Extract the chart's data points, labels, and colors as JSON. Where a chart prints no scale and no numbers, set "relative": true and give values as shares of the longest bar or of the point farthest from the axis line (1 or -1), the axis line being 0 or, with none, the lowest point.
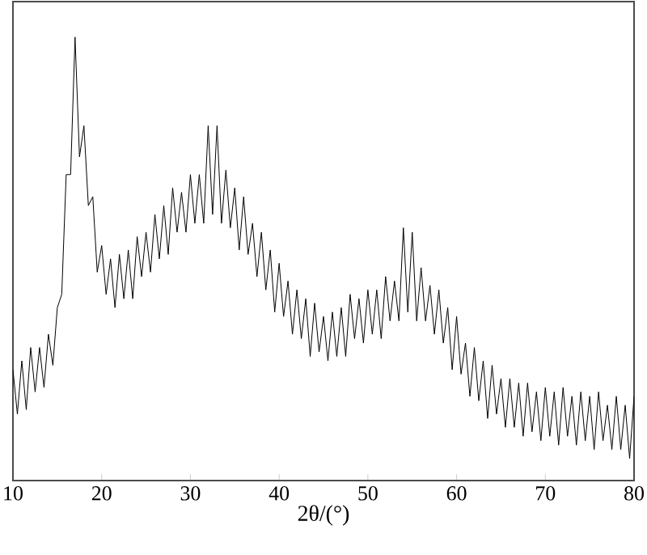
{
  "chart_data": {
    "type": "line",
    "relative": true,
    "xlabel": "2θ/(°)",
    "xlim": [
      10,
      80
    ],
    "xticks": [
      10,
      20,
      30,
      40,
      50,
      60,
      70,
      80
    ],
    "marker": "none",
    "line_style": "solid",
    "x": [
      10,
      10.5,
      11,
      11.5,
      12,
      12.5,
      13,
      13.5,
      14,
      14.5,
      15,
      15.5,
      16,
      16.5,
      17,
      17.5,
      18,
      18.5,
      19,
      19.5,
      20,
      20.5,
      21,
      21.5,
      22,
      22.5,
      23,
      23.5,
      24,
      24.5,
      25,
      25.5,
      26,
      26.5,
      27,
      27.5,
      28,
      28.5,
      29,
      29.5,
      30,
      30.5,
      31,
      31.5,
      32,
      32.5,
      33,
      33.5,
      34,
      34.5,
      35,
      35.5,
      36,
      36.5,
      37,
      37.5,
      38,
      38.5,
      39,
      39.5,
      40,
      40.5,
      41,
      41.5,
      42,
      42.5,
      43,
      43.5,
      44,
      44.5,
      45,
      45.5,
      46,
      46.5,
      47,
      47.5,
      48,
      48.5,
      49,
      49.5,
      50,
      50.5,
      51,
      51.5,
      52,
      52.5,
      53,
      53.5,
      54,
      54.5,
      55,
      55.5,
      56,
      56.5,
      57,
      57.5,
      58,
      58.5,
      59,
      59.5,
      60,
      60.5,
      61,
      61.5,
      62,
      62.5,
      63,
      63.5,
      64,
      64.5,
      65,
      65.5,
      66,
      66.5,
      67,
      67.5,
      68,
      68.5,
      69,
      69.5,
      70,
      70.5,
      71,
      71.5,
      72,
      72.5,
      73,
      73.5,
      74,
      74.5,
      75,
      75.5,
      76,
      76.5,
      77,
      77.5,
      78,
      78.5,
      79,
      79.5,
      80
    ],
    "series": [
      {
        "color": "#000000",
        "values": [
          0.25,
          0.15,
          0.27,
          0.16,
          0.3,
          0.2,
          0.3,
          0.21,
          0.33,
          0.26,
          0.39,
          0.42,
          0.69,
          0.69,
          1.0,
          0.73,
          0.8,
          0.62,
          0.64,
          0.47,
          0.53,
          0.42,
          0.5,
          0.39,
          0.51,
          0.41,
          0.52,
          0.41,
          0.55,
          0.46,
          0.56,
          0.47,
          0.6,
          0.5,
          0.62,
          0.51,
          0.66,
          0.56,
          0.65,
          0.56,
          0.69,
          0.58,
          0.69,
          0.58,
          0.8,
          0.6,
          0.8,
          0.58,
          0.7,
          0.57,
          0.66,
          0.52,
          0.64,
          0.51,
          0.58,
          0.46,
          0.56,
          0.43,
          0.52,
          0.38,
          0.49,
          0.37,
          0.45,
          0.33,
          0.43,
          0.32,
          0.41,
          0.28,
          0.4,
          0.29,
          0.37,
          0.27,
          0.38,
          0.28,
          0.39,
          0.28,
          0.42,
          0.32,
          0.41,
          0.31,
          0.43,
          0.33,
          0.43,
          0.32,
          0.46,
          0.36,
          0.45,
          0.36,
          0.57,
          0.38,
          0.56,
          0.36,
          0.48,
          0.36,
          0.44,
          0.33,
          0.43,
          0.31,
          0.39,
          0.25,
          0.37,
          0.24,
          0.31,
          0.19,
          0.3,
          0.18,
          0.27,
          0.14,
          0.26,
          0.15,
          0.23,
          0.12,
          0.23,
          0.12,
          0.22,
          0.1,
          0.22,
          0.11,
          0.2,
          0.09,
          0.21,
          0.1,
          0.2,
          0.08,
          0.21,
          0.1,
          0.19,
          0.08,
          0.2,
          0.09,
          0.19,
          0.07,
          0.2,
          0.09,
          0.17,
          0.07,
          0.19,
          0.07,
          0.17,
          0.05,
          0.19
        ]
      }
    ]
  }
}
